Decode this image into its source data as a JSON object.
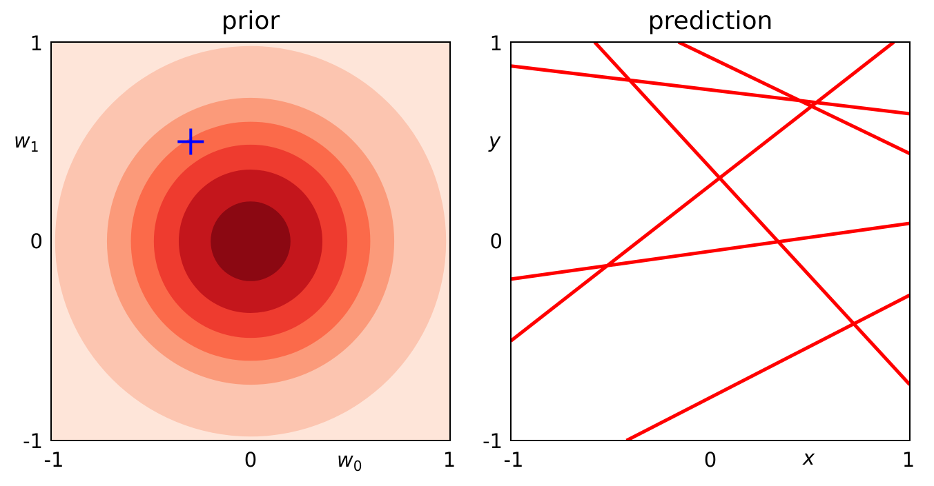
{
  "chart_data": [
    {
      "type": "contour",
      "title": "prior",
      "xlabel": "w",
      "xlabel_sub": "0",
      "ylabel": "w",
      "ylabel_sub": "1",
      "xlim": [
        -1,
        1
      ],
      "ylim": [
        -1,
        1
      ],
      "xticks": [
        "-1",
        "0",
        "1"
      ],
      "yticks": [
        "-1",
        "0",
        "1"
      ],
      "contour_radii": [
        0.72,
        0.6,
        0.485,
        0.36,
        0.2
      ],
      "contour_colors": [
        "#fee5d9",
        "#fcc5b0",
        "#fb9a7a",
        "#fb6a4a",
        "#ee3b2f",
        "#c4161c",
        "#8b0812"
      ],
      "marker": {
        "type": "plus",
        "x": -0.3,
        "y": 0.5,
        "color": "#0000ff"
      },
      "grid": false
    },
    {
      "type": "line",
      "title": "prediction",
      "xlabel": "x",
      "ylabel": "y",
      "xlim": [
        -1,
        1
      ],
      "ylim": [
        -1,
        1
      ],
      "xticks": [
        "-1",
        "0",
        "1"
      ],
      "yticks": [
        "-1",
        "0",
        "1"
      ],
      "series": [
        {
          "points": [
            [
              -1,
              0.88
            ],
            [
              1,
              0.64
            ]
          ]
        },
        {
          "points": [
            [
              -0.58,
              1.0
            ],
            [
              1,
              -0.72
            ]
          ]
        },
        {
          "points": [
            [
              -0.16,
              1.0
            ],
            [
              1,
              0.44
            ]
          ]
        },
        {
          "points": [
            [
              -1,
              -0.5
            ],
            [
              0.92,
              1.0
            ]
          ]
        },
        {
          "points": [
            [
              -1,
              -0.19
            ],
            [
              1,
              0.09
            ]
          ]
        },
        {
          "points": [
            [
              -0.42,
              -1.0
            ],
            [
              1,
              -0.27
            ]
          ]
        }
      ],
      "line_color": "#ff0000",
      "grid": false
    }
  ]
}
